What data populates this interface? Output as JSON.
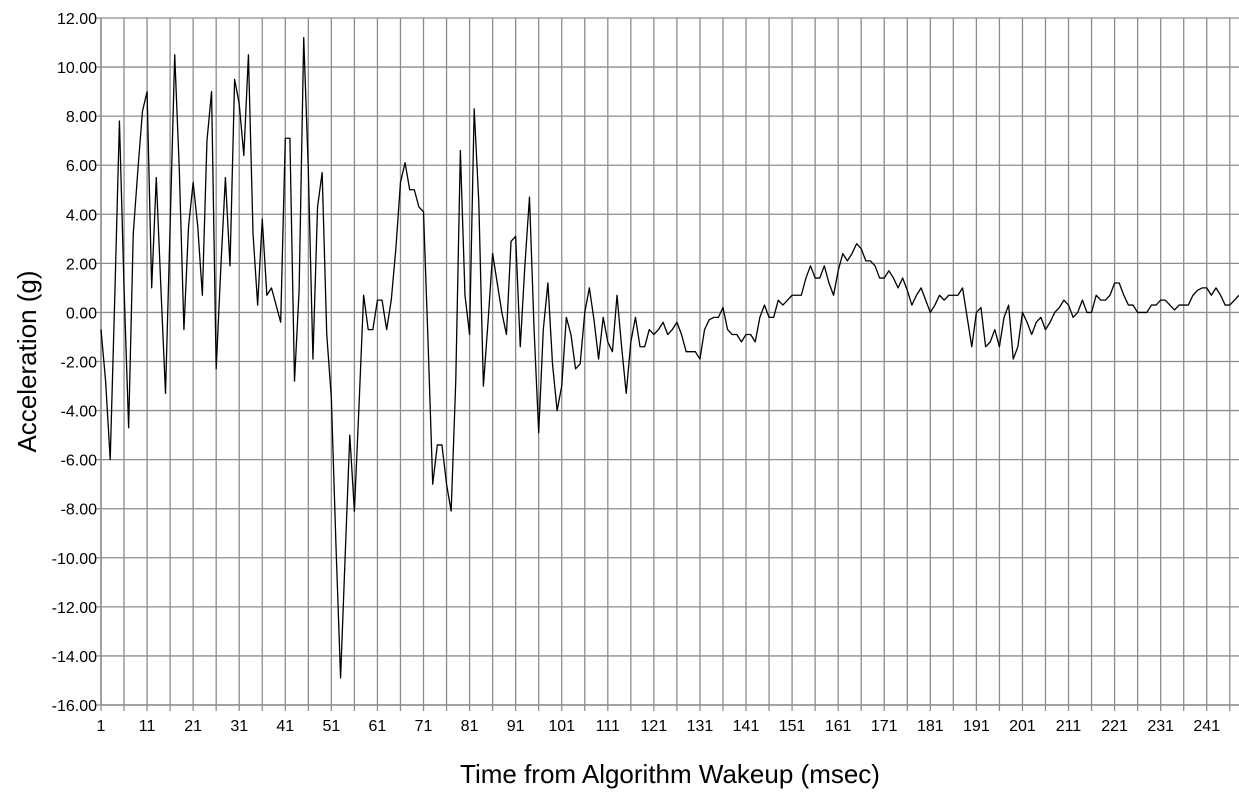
{
  "chart_data": {
    "type": "line",
    "title": "",
    "xlabel": "Time from Algorithm Wakeup (msec)",
    "ylabel": "Acceleration (g)",
    "xlim": [
      1,
      248
    ],
    "ylim": [
      -16,
      12
    ],
    "grid": true,
    "x_ticks": [
      1,
      11,
      21,
      31,
      41,
      51,
      61,
      71,
      81,
      91,
      101,
      111,
      121,
      131,
      141,
      151,
      161,
      171,
      181,
      191,
      201,
      211,
      221,
      231,
      241
    ],
    "y_ticks": [
      "12.00",
      "10.00",
      "8.00",
      "6.00",
      "4.00",
      "2.00",
      "0.00",
      "-2.00",
      "-4.00",
      "-6.00",
      "-8.00",
      "-10.00",
      "-12.00",
      "-14.00",
      "-16.00"
    ],
    "line_color": "#000000",
    "grid_color": "#8c8c8c",
    "series": [
      {
        "x_start": 1,
        "x_step": 1,
        "values": [
          -0.7,
          -2.8,
          -6.0,
          0.7,
          7.8,
          1.0,
          -4.7,
          3.2,
          5.8,
          8.2,
          9.0,
          1.0,
          5.5,
          1.0,
          -3.3,
          3.5,
          10.5,
          5.8,
          -0.7,
          3.5,
          5.3,
          3.5,
          0.7,
          7.0,
          9.0,
          -2.3,
          1.8,
          5.5,
          1.9,
          9.5,
          8.5,
          6.4,
          10.5,
          3.2,
          0.3,
          3.8,
          0.7,
          1.0,
          0.3,
          -0.4,
          7.1,
          7.1,
          -2.8,
          0.9,
          11.2,
          5.8,
          -1.9,
          4.3,
          5.7,
          -0.9,
          -3.5,
          -9.5,
          -14.9,
          -9.9,
          -5.0,
          -8.1,
          -3.8,
          0.7,
          -0.7,
          -0.7,
          0.5,
          0.5,
          -0.7,
          0.5,
          2.6,
          5.3,
          6.1,
          5.0,
          5.0,
          4.3,
          4.1,
          -1.3,
          -7.0,
          -5.4,
          -5.4,
          -7.0,
          -8.1,
          -2.8,
          6.6,
          0.7,
          -0.9,
          8.3,
          4.5,
          -3.0,
          -0.4,
          2.4,
          1.2,
          0.0,
          -0.9,
          2.9,
          3.1,
          -1.4,
          1.9,
          4.7,
          -0.7,
          -4.9,
          -0.7,
          1.2,
          -2.1,
          -4.0,
          -3.0,
          -0.2,
          -0.9,
          -2.3,
          -2.1,
          0.0,
          1.0,
          -0.3,
          -1.9,
          -0.2,
          -1.2,
          -1.6,
          0.7,
          -1.4,
          -3.3,
          -1.2,
          -0.2,
          -1.4,
          -1.4,
          -0.7,
          -0.9,
          -0.7,
          -0.4,
          -0.9,
          -0.7,
          -0.4,
          -0.9,
          -1.6,
          -1.6,
          -1.6,
          -1.9,
          -0.7,
          -0.3,
          -0.2,
          -0.2,
          0.2,
          -0.7,
          -0.9,
          -0.9,
          -1.2,
          -0.9,
          -0.9,
          -1.2,
          -0.2,
          0.3,
          -0.2,
          -0.2,
          0.5,
          0.3,
          0.5,
          0.7,
          0.7,
          0.7,
          1.4,
          1.9,
          1.4,
          1.4,
          1.9,
          1.2,
          0.7,
          1.7,
          2.4,
          2.1,
          2.4,
          2.8,
          2.6,
          2.1,
          2.1,
          1.9,
          1.4,
          1.4,
          1.7,
          1.4,
          1.0,
          1.4,
          0.9,
          0.3,
          0.7,
          1.0,
          0.5,
          0.0,
          0.3,
          0.7,
          0.5,
          0.7,
          0.7,
          0.7,
          1.0,
          -0.2,
          -1.4,
          0.0,
          0.2,
          -1.4,
          -1.2,
          -0.7,
          -1.4,
          -0.2,
          0.3,
          -1.9,
          -1.4,
          0.0,
          -0.4,
          -0.9,
          -0.4,
          -0.2,
          -0.7,
          -0.4,
          0.0,
          0.2,
          0.5,
          0.3,
          -0.2,
          0.0,
          0.5,
          0.0,
          0.0,
          0.7,
          0.5,
          0.5,
          0.7,
          1.2,
          1.2,
          0.7,
          0.3,
          0.3,
          0.0,
          0.0,
          0.0,
          0.3,
          0.3,
          0.5,
          0.5,
          0.3,
          0.1,
          0.3,
          0.3,
          0.3,
          0.7,
          0.9,
          1.0,
          1.0,
          0.7,
          1.0,
          0.7,
          0.3,
          0.3,
          0.5,
          0.7,
          0.5,
          0.5,
          0.7,
          0.7,
          0.7
        ]
      }
    ]
  }
}
